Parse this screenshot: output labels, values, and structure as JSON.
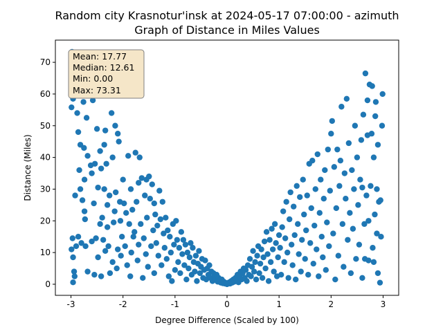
{
  "chart_data": {
    "type": "scatter",
    "title_line1": "Random city Krasnotur'insk at 2024-05-17 07:00:00  - azimuth",
    "title_line2": "Graph of Distance in Miles Values",
    "xlabel": "Degree Difference (Scaled by 100)",
    "ylabel": "Distance (Miles)",
    "xlim": [
      -3.3,
      3.3
    ],
    "ylim": [
      -3.5,
      77
    ],
    "x_ticks": [
      -3,
      -2,
      -1,
      0,
      1,
      2,
      3
    ],
    "y_ticks": [
      0,
      10,
      20,
      30,
      40,
      50,
      60,
      70
    ],
    "grid": false,
    "point_color": "#1f77b4",
    "stats_box": {
      "placement": "top-left",
      "lines": [
        "Mean: 17.77",
        "Median: 12.61",
        "Min: 0.00",
        "Max: 73.31"
      ],
      "fill": "#f5e6c8",
      "edge": "#7f7f7f"
    },
    "points": [
      [
        -2.98,
        73.3
      ],
      [
        -2.95,
        71.0
      ],
      [
        -2.96,
        58.5
      ],
      [
        -2.99,
        55.8
      ],
      [
        -2.97,
        14.5
      ],
      [
        -2.99,
        11.0
      ],
      [
        -2.96,
        8.5
      ],
      [
        -2.94,
        4.0
      ],
      [
        -2.93,
        2.5
      ],
      [
        -2.96,
        0.6
      ],
      [
        -2.92,
        28.0
      ],
      [
        -2.88,
        54.0
      ],
      [
        -2.86,
        48.0
      ],
      [
        -2.84,
        36.0
      ],
      [
        -2.86,
        15.0
      ],
      [
        -2.9,
        12.0
      ],
      [
        -2.82,
        44.0
      ],
      [
        -2.82,
        30.0
      ],
      [
        -2.81,
        69.0
      ],
      [
        -2.8,
        13.0
      ],
      [
        -2.78,
        26.5
      ],
      [
        -2.76,
        57.5
      ],
      [
        -2.75,
        43.0
      ],
      [
        -2.74,
        33.0
      ],
      [
        -2.74,
        23.0
      ],
      [
        -2.73,
        20.5
      ],
      [
        -2.72,
        12.0
      ],
      [
        -2.7,
        52.5
      ],
      [
        -2.68,
        40.5
      ],
      [
        -2.68,
        4.0
      ],
      [
        -2.66,
        60.0
      ],
      [
        -2.64,
        62.0
      ],
      [
        -2.62,
        37.5
      ],
      [
        -2.6,
        35.0
      ],
      [
        -2.6,
        13.5
      ],
      [
        -2.58,
        58.0
      ],
      [
        -2.56,
        25.5
      ],
      [
        -2.55,
        3.0
      ],
      [
        -2.54,
        38.0
      ],
      [
        -2.52,
        14.5
      ],
      [
        -2.5,
        49.0
      ],
      [
        -2.48,
        30.5
      ],
      [
        -2.48,
        8.5
      ],
      [
        -2.46,
        60.5
      ],
      [
        -2.44,
        42.0
      ],
      [
        -2.44,
        19.0
      ],
      [
        -2.42,
        36.5
      ],
      [
        -2.42,
        2.5
      ],
      [
        -2.4,
        21.0
      ],
      [
        -2.38,
        14.0
      ],
      [
        -2.36,
        44.0
      ],
      [
        -2.36,
        30.0
      ],
      [
        -2.34,
        48.5
      ],
      [
        -2.34,
        10.5
      ],
      [
        -2.32,
        38.0
      ],
      [
        -2.3,
        25.0
      ],
      [
        -2.3,
        18.0
      ],
      [
        -2.28,
        12.0
      ],
      [
        -2.26,
        28.0
      ],
      [
        -2.25,
        3.5
      ],
      [
        -2.22,
        54.0
      ],
      [
        -2.2,
        40.0
      ],
      [
        -2.2,
        7.0
      ],
      [
        -2.18,
        19.5
      ],
      [
        -2.16,
        23.0
      ],
      [
        -2.15,
        50.0
      ],
      [
        -2.14,
        29.0
      ],
      [
        -2.12,
        5.0
      ],
      [
        -2.1,
        47.5
      ],
      [
        -2.1,
        11.0
      ],
      [
        -2.08,
        45.0
      ],
      [
        -2.06,
        26.0
      ],
      [
        -2.05,
        20.0
      ],
      [
        -2.04,
        9.0
      ],
      [
        -2.02,
        15.0
      ],
      [
        -2.0,
        33.0
      ],
      [
        -1.98,
        25.5
      ],
      [
        -1.96,
        12.0
      ],
      [
        -1.94,
        22.5
      ],
      [
        -1.92,
        6.0
      ],
      [
        -1.9,
        40.5
      ],
      [
        -1.88,
        19.0
      ],
      [
        -1.86,
        2.5
      ],
      [
        -1.85,
        30.0
      ],
      [
        -1.84,
        10.0
      ],
      [
        -1.82,
        23.5
      ],
      [
        -1.8,
        15.0
      ],
      [
        -1.78,
        16.5
      ],
      [
        -1.76,
        41.5
      ],
      [
        -1.74,
        26.0
      ],
      [
        -1.72,
        7.5
      ],
      [
        -1.7,
        32.0
      ],
      [
        -1.7,
        12.5
      ],
      [
        -1.68,
        40.0
      ],
      [
        -1.66,
        19.0
      ],
      [
        -1.64,
        33.5
      ],
      [
        -1.62,
        2.0
      ],
      [
        -1.6,
        14.5
      ],
      [
        -1.58,
        28.0
      ],
      [
        -1.56,
        9.5
      ],
      [
        -1.55,
        33.0
      ],
      [
        -1.54,
        21.0
      ],
      [
        -1.52,
        5.5
      ],
      [
        -1.5,
        34.0
      ],
      [
        -1.48,
        27.0
      ],
      [
        -1.46,
        12.0
      ],
      [
        -1.44,
        31.5
      ],
      [
        -1.42,
        17.0
      ],
      [
        -1.4,
        25.5
      ],
      [
        -1.4,
        3.5
      ],
      [
        -1.38,
        22.0
      ],
      [
        -1.36,
        13.0
      ],
      [
        -1.34,
        18.5
      ],
      [
        -1.32,
        9.0
      ],
      [
        -1.3,
        29.5
      ],
      [
        -1.28,
        20.5
      ],
      [
        -1.26,
        6.0
      ],
      [
        -1.24,
        26.0
      ],
      [
        -1.22,
        16.0
      ],
      [
        -1.2,
        11.5
      ],
      [
        -1.18,
        21.0
      ],
      [
        -1.16,
        8.0
      ],
      [
        -1.14,
        17.0
      ],
      [
        -1.12,
        2.5
      ],
      [
        -1.1,
        15.0
      ],
      [
        -1.08,
        10.0
      ],
      [
        -1.06,
        1.0
      ],
      [
        -1.04,
        19.0
      ],
      [
        -1.02,
        12.5
      ],
      [
        -1.0,
        4.5
      ],
      [
        -0.98,
        20.0
      ],
      [
        -0.96,
        14.0
      ],
      [
        -0.94,
        7.0
      ],
      [
        -0.92,
        11.5
      ],
      [
        -0.9,
        3.5
      ],
      [
        -0.88,
        16.5
      ],
      [
        -0.86,
        9.5
      ],
      [
        -0.84,
        14.0
      ],
      [
        -0.82,
        6.0
      ],
      [
        -0.8,
        12.5
      ],
      [
        -0.78,
        1.5
      ],
      [
        -0.76,
        10.0
      ],
      [
        -0.74,
        5.0
      ],
      [
        -0.72,
        8.5
      ],
      [
        -0.7,
        13.0
      ],
      [
        -0.68,
        3.0
      ],
      [
        -0.66,
        11.5
      ],
      [
        -0.64,
        7.0
      ],
      [
        -0.62,
        4.0
      ],
      [
        -0.6,
        9.0
      ],
      [
        -0.58,
        1.0
      ],
      [
        -0.56,
        6.5
      ],
      [
        -0.54,
        10.5
      ],
      [
        -0.52,
        3.5
      ],
      [
        -0.5,
        5.5
      ],
      [
        -0.48,
        8.0
      ],
      [
        -0.46,
        2.0
      ],
      [
        -0.44,
        4.5
      ],
      [
        -0.42,
        7.5
      ],
      [
        -0.4,
        1.5
      ],
      [
        -0.38,
        5.0
      ],
      [
        -0.36,
        3.0
      ],
      [
        -0.34,
        6.0
      ],
      [
        -0.32,
        2.0
      ],
      [
        -0.3,
        4.0
      ],
      [
        -0.28,
        1.0
      ],
      [
        -0.26,
        3.5
      ],
      [
        -0.24,
        2.5
      ],
      [
        -0.22,
        1.5
      ],
      [
        -0.2,
        3.0
      ],
      [
        -0.18,
        0.8
      ],
      [
        -0.16,
        2.0
      ],
      [
        -0.14,
        1.2
      ],
      [
        -0.12,
        0.5
      ],
      [
        -0.1,
        1.5
      ],
      [
        -0.08,
        0.3
      ],
      [
        -0.06,
        0.8
      ],
      [
        -0.04,
        0.2
      ],
      [
        -0.02,
        0.4
      ],
      [
        0.0,
        0.0
      ],
      [
        0.02,
        0.3
      ],
      [
        0.04,
        0.6
      ],
      [
        0.06,
        0.2
      ],
      [
        0.08,
        1.0
      ],
      [
        0.1,
        0.5
      ],
      [
        0.12,
        1.5
      ],
      [
        0.14,
        0.8
      ],
      [
        0.16,
        2.0
      ],
      [
        0.18,
        1.2
      ],
      [
        0.2,
        3.0
      ],
      [
        0.22,
        0.6
      ],
      [
        0.24,
        2.5
      ],
      [
        0.26,
        4.0
      ],
      [
        0.28,
        1.5
      ],
      [
        0.3,
        3.5
      ],
      [
        0.32,
        5.0
      ],
      [
        0.34,
        2.0
      ],
      [
        0.36,
        4.5
      ],
      [
        0.38,
        1.0
      ],
      [
        0.4,
        6.0
      ],
      [
        0.42,
        3.0
      ],
      [
        0.44,
        8.0
      ],
      [
        0.46,
        2.5
      ],
      [
        0.48,
        5.5
      ],
      [
        0.5,
        10.5
      ],
      [
        0.52,
        4.0
      ],
      [
        0.54,
        7.0
      ],
      [
        0.56,
        1.5
      ],
      [
        0.58,
        9.0
      ],
      [
        0.6,
        12.0
      ],
      [
        0.62,
        3.5
      ],
      [
        0.64,
        6.5
      ],
      [
        0.66,
        11.0
      ],
      [
        0.68,
        2.0
      ],
      [
        0.7,
        8.5
      ],
      [
        0.72,
        13.5
      ],
      [
        0.74,
        5.0
      ],
      [
        0.76,
        16.5
      ],
      [
        0.78,
        9.5
      ],
      [
        0.8,
        1.0
      ],
      [
        0.82,
        14.0
      ],
      [
        0.84,
        7.0
      ],
      [
        0.86,
        17.5
      ],
      [
        0.88,
        11.0
      ],
      [
        0.9,
        4.0
      ],
      [
        0.92,
        19.0
      ],
      [
        0.94,
        13.0
      ],
      [
        0.96,
        2.5
      ],
      [
        0.98,
        8.5
      ],
      [
        1.0,
        15.5
      ],
      [
        1.02,
        11.5
      ],
      [
        1.04,
        3.0
      ],
      [
        1.06,
        18.0
      ],
      [
        1.08,
        23.0
      ],
      [
        1.1,
        7.0
      ],
      [
        1.12,
        14.5
      ],
      [
        1.14,
        26.0
      ],
      [
        1.16,
        10.0
      ],
      [
        1.18,
        2.0
      ],
      [
        1.2,
        20.5
      ],
      [
        1.22,
        29.0
      ],
      [
        1.24,
        12.5
      ],
      [
        1.26,
        6.0
      ],
      [
        1.28,
        24.5
      ],
      [
        1.3,
        15.5
      ],
      [
        1.32,
        1.5
      ],
      [
        1.34,
        31.0
      ],
      [
        1.36,
        19.0
      ],
      [
        1.38,
        9.5
      ],
      [
        1.4,
        27.5
      ],
      [
        1.42,
        4.0
      ],
      [
        1.44,
        14.0
      ],
      [
        1.46,
        33.0
      ],
      [
        1.48,
        22.0
      ],
      [
        1.5,
        8.0
      ],
      [
        1.52,
        17.0
      ],
      [
        1.54,
        28.0
      ],
      [
        1.56,
        3.0
      ],
      [
        1.58,
        38.0
      ],
      [
        1.6,
        13.0
      ],
      [
        1.62,
        24.0
      ],
      [
        1.64,
        39.0
      ],
      [
        1.66,
        6.5
      ],
      [
        1.68,
        18.5
      ],
      [
        1.7,
        30.0
      ],
      [
        1.72,
        11.0
      ],
      [
        1.74,
        41.0
      ],
      [
        1.76,
        2.5
      ],
      [
        1.78,
        22.5
      ],
      [
        1.8,
        33.0
      ],
      [
        1.82,
        15.0
      ],
      [
        1.84,
        8.5
      ],
      [
        1.86,
        27.0
      ],
      [
        1.88,
        36.0
      ],
      [
        1.9,
        4.5
      ],
      [
        1.92,
        19.5
      ],
      [
        1.94,
        42.5
      ],
      [
        1.96,
        12.0
      ],
      [
        1.98,
        29.5
      ],
      [
        2.0,
        47.5
      ],
      [
        2.02,
        51.5
      ],
      [
        2.04,
        16.0
      ],
      [
        2.06,
        37.0
      ],
      [
        2.08,
        1.5
      ],
      [
        2.1,
        24.0
      ],
      [
        2.12,
        42.5
      ],
      [
        2.14,
        9.0
      ],
      [
        2.16,
        31.0
      ],
      [
        2.18,
        39.0
      ],
      [
        2.2,
        56.0
      ],
      [
        2.22,
        19.0
      ],
      [
        2.24,
        5.5
      ],
      [
        2.26,
        35.0
      ],
      [
        2.28,
        27.0
      ],
      [
        2.3,
        58.5
      ],
      [
        2.32,
        14.0
      ],
      [
        2.34,
        44.5
      ],
      [
        2.36,
        22.5
      ],
      [
        2.38,
        3.5
      ],
      [
        2.4,
        36.0
      ],
      [
        2.42,
        17.5
      ],
      [
        2.44,
        30.0
      ],
      [
        2.46,
        50.0
      ],
      [
        2.48,
        8.0
      ],
      [
        2.5,
        40.0
      ],
      [
        2.52,
        25.0
      ],
      [
        2.54,
        12.5
      ],
      [
        2.56,
        33.0
      ],
      [
        2.58,
        45.5
      ],
      [
        2.6,
        2.0
      ],
      [
        2.62,
        53.5
      ],
      [
        2.64,
        19.0
      ],
      [
        2.66,
        66.5
      ],
      [
        2.68,
        28.0
      ],
      [
        2.7,
        58.0
      ],
      [
        2.72,
        7.5
      ],
      [
        2.74,
        63.0
      ],
      [
        2.76,
        31.0
      ],
      [
        2.78,
        47.5
      ],
      [
        2.8,
        11.5
      ],
      [
        2.82,
        40.0
      ],
      [
        2.84,
        22.0
      ],
      [
        2.86,
        57.5
      ],
      [
        2.88,
        16.0
      ],
      [
        2.9,
        44.0
      ],
      [
        2.92,
        26.0
      ],
      [
        2.94,
        0.5
      ],
      [
        2.96,
        15.0
      ],
      [
        2.98,
        50.0
      ],
      [
        2.99,
        60.0
      ],
      [
        2.79,
        62.5
      ],
      [
        2.85,
        53.0
      ],
      [
        2.72,
        20.0
      ],
      [
        2.65,
        8.0
      ],
      [
        2.6,
        30.5
      ],
      [
        2.95,
        26.5
      ],
      [
        2.88,
        30.0
      ],
      [
        2.9,
        3.5
      ],
      [
        2.7,
        47.0
      ],
      [
        2.82,
        7.0
      ]
    ]
  }
}
